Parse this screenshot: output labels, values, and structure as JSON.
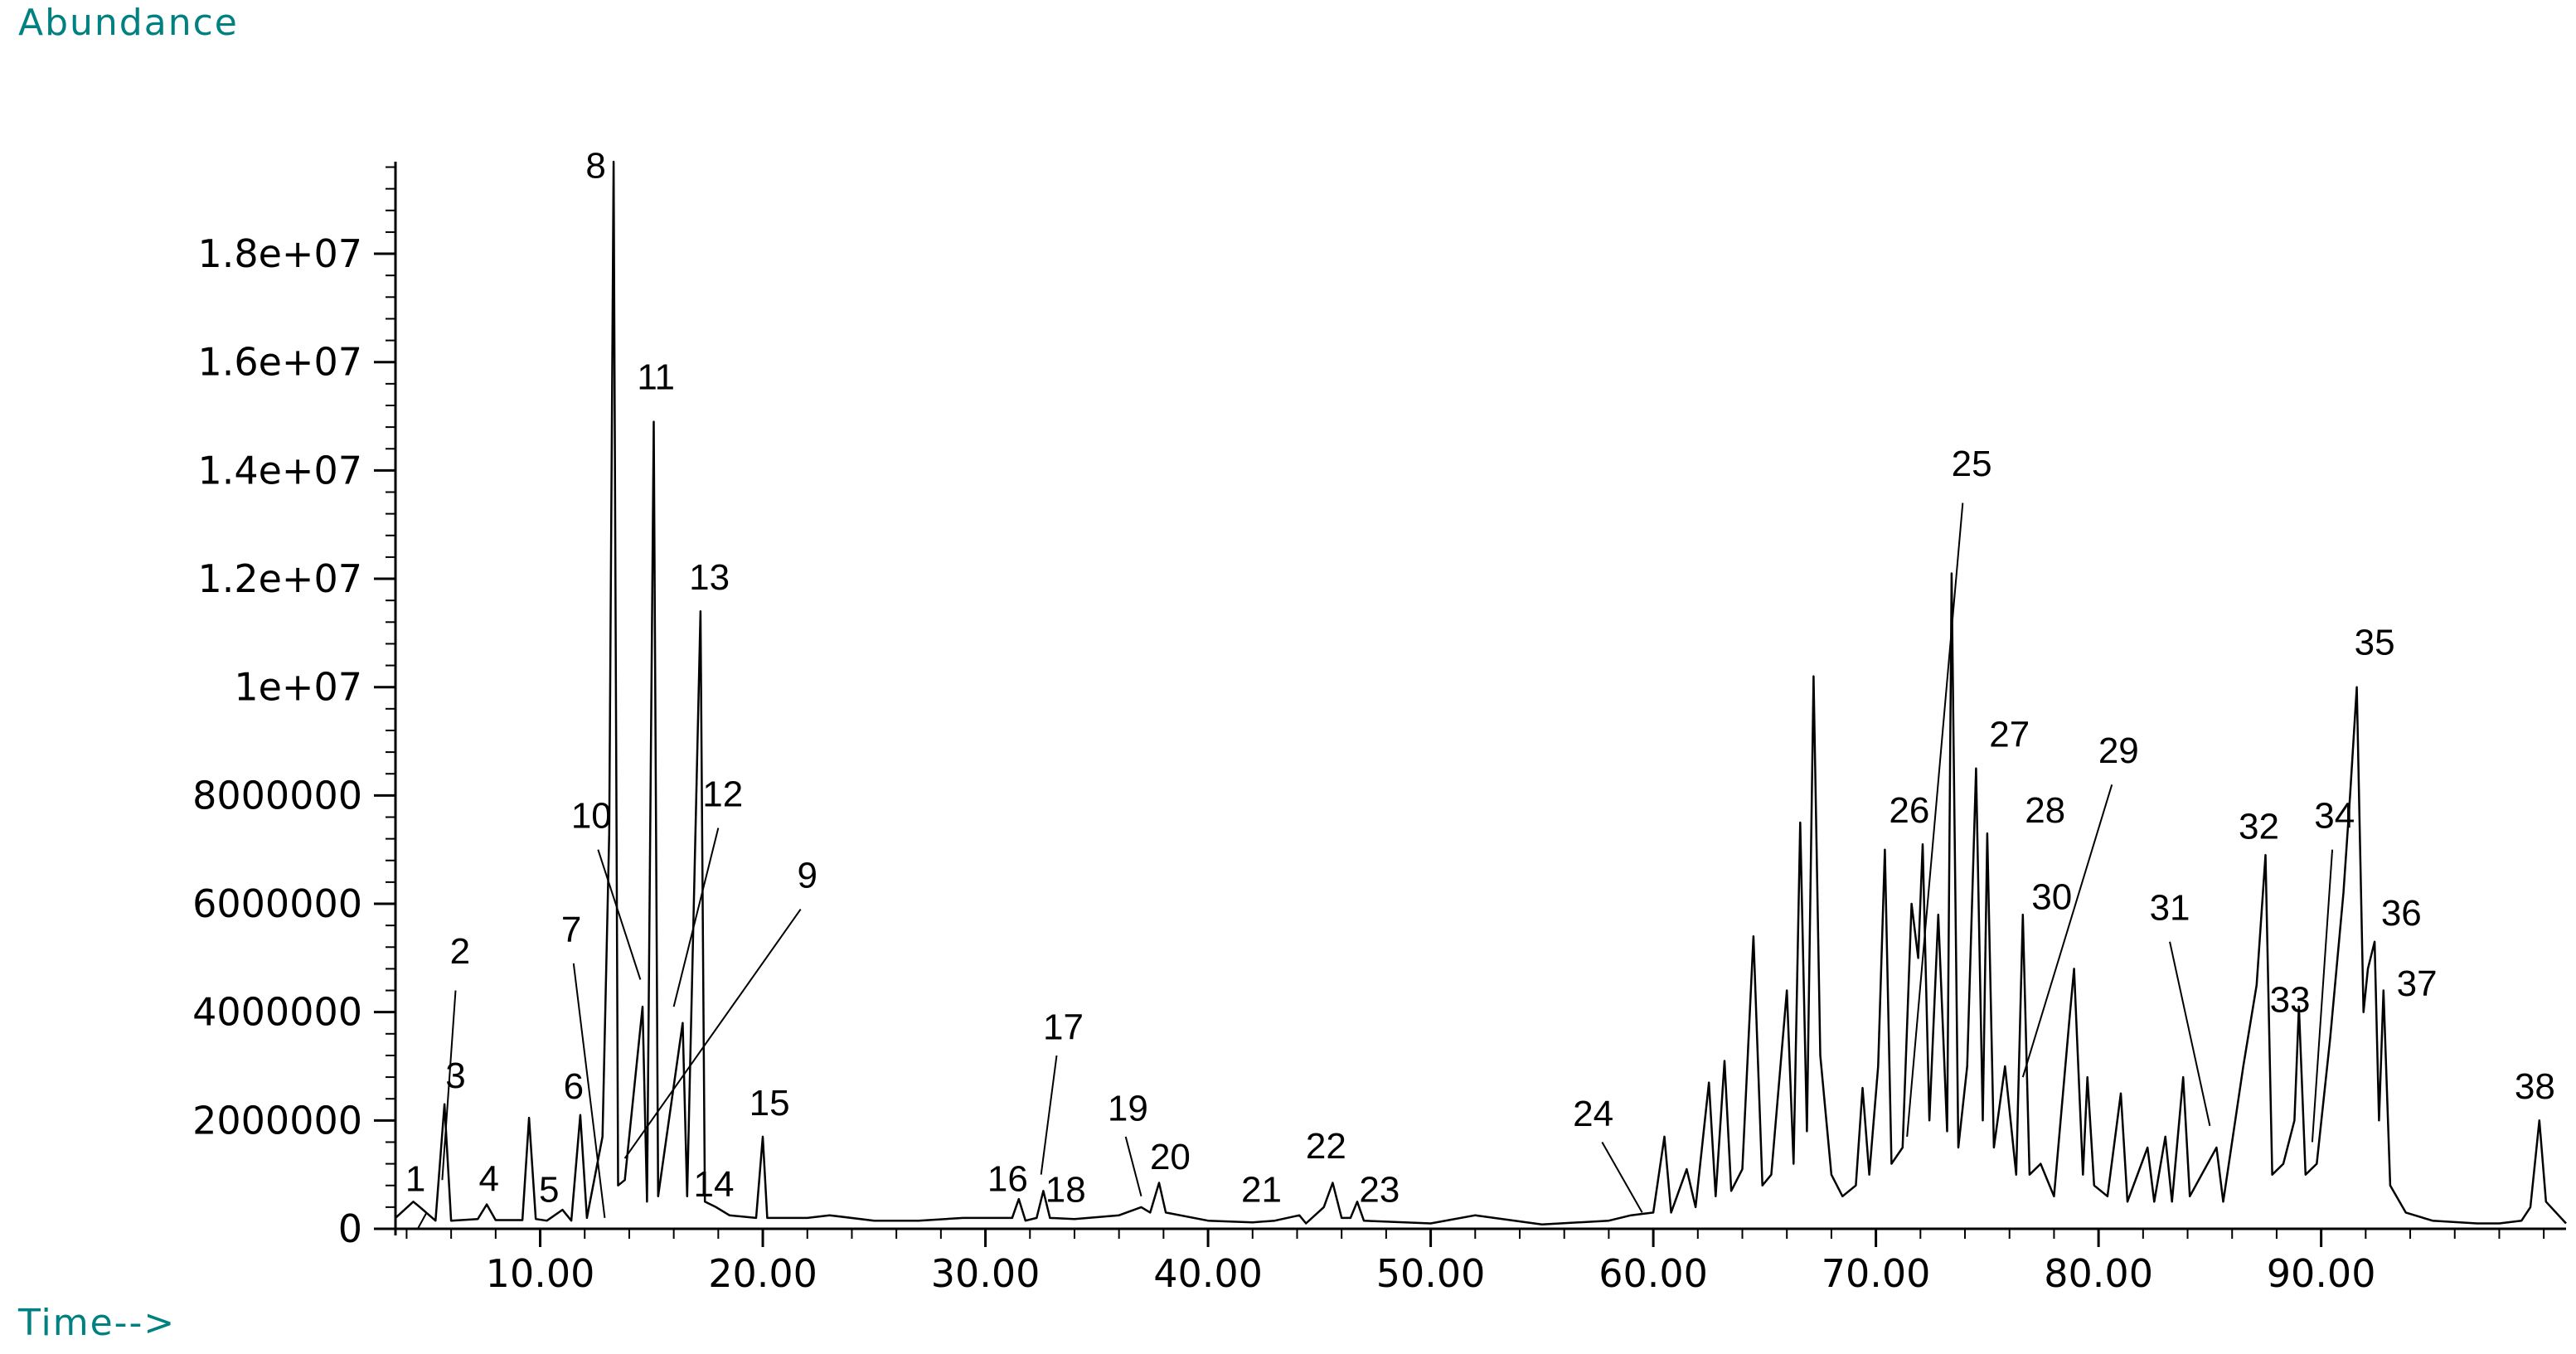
{
  "chart_data": {
    "type": "line",
    "ylabel": "Abundance",
    "xlabel": "Time-->",
    "xlim": [
      3.5,
      101
    ],
    "ylim": [
      0,
      19700000
    ],
    "x_ticks": [
      10,
      20,
      30,
      40,
      50,
      60,
      70,
      80,
      90
    ],
    "x_tick_labels": [
      "10.00",
      "20.00",
      "30.00",
      "40.00",
      "50.00",
      "60.00",
      "70.00",
      "80.00",
      "90.00"
    ],
    "y_ticks": [
      0,
      2000000,
      4000000,
      6000000,
      8000000,
      10000000,
      12000000,
      14000000,
      16000000,
      18000000
    ],
    "y_tick_labels": [
      "0",
      "2000000",
      "4000000",
      "6000000",
      "8000000",
      "1e+07",
      "1.2e+07",
      "1.4e+07",
      "1.6e+07",
      "1.8e+07"
    ],
    "line_color": "#000000",
    "series": [
      {
        "values": [
          [
            3.5,
            200000
          ],
          [
            4.3,
            500000
          ],
          [
            4.6,
            400000
          ],
          [
            5.3,
            150000
          ],
          [
            5.7,
            2300000
          ],
          [
            6.0,
            150000
          ],
          [
            7.2,
            180000
          ],
          [
            7.6,
            450000
          ],
          [
            8.0,
            160000
          ],
          [
            9.2,
            160000
          ],
          [
            9.5,
            2050000
          ],
          [
            9.8,
            180000
          ],
          [
            10.3,
            150000
          ],
          [
            11.0,
            350000
          ],
          [
            11.4,
            150000
          ],
          [
            11.8,
            2100000
          ],
          [
            12.1,
            200000
          ],
          [
            12.8,
            1700000
          ],
          [
            13.1,
            7300000
          ],
          [
            13.3,
            19700000
          ],
          [
            13.5,
            800000
          ],
          [
            13.8,
            900000
          ],
          [
            14.6,
            4100000
          ],
          [
            14.8,
            500000
          ],
          [
            15.1,
            14900000
          ],
          [
            15.3,
            600000
          ],
          [
            16.4,
            3800000
          ],
          [
            16.6,
            600000
          ],
          [
            17.2,
            11400000
          ],
          [
            17.4,
            500000
          ],
          [
            17.9,
            400000
          ],
          [
            18.5,
            250000
          ],
          [
            19.7,
            200000
          ],
          [
            20.0,
            1700000
          ],
          [
            20.2,
            200000
          ],
          [
            22.0,
            200000
          ],
          [
            23.0,
            250000
          ],
          [
            25.0,
            150000
          ],
          [
            27.0,
            150000
          ],
          [
            29.0,
            200000
          ],
          [
            31.2,
            200000
          ],
          [
            31.5,
            550000
          ],
          [
            31.8,
            150000
          ],
          [
            32.3,
            200000
          ],
          [
            32.6,
            700000
          ],
          [
            32.9,
            200000
          ],
          [
            34.0,
            180000
          ],
          [
            36.0,
            250000
          ],
          [
            37.0,
            400000
          ],
          [
            37.4,
            300000
          ],
          [
            37.8,
            850000
          ],
          [
            38.1,
            300000
          ],
          [
            40.0,
            150000
          ],
          [
            42.0,
            120000
          ],
          [
            43.0,
            150000
          ],
          [
            44.1,
            250000
          ],
          [
            44.4,
            100000
          ],
          [
            45.2,
            400000
          ],
          [
            45.6,
            850000
          ],
          [
            46.0,
            200000
          ],
          [
            46.4,
            200000
          ],
          [
            46.7,
            500000
          ],
          [
            47.0,
            150000
          ],
          [
            50.0,
            100000
          ],
          [
            52.0,
            250000
          ],
          [
            55.0,
            80000
          ],
          [
            58.0,
            150000
          ],
          [
            59.0,
            250000
          ],
          [
            60.0,
            300000
          ],
          [
            60.5,
            1700000
          ],
          [
            60.8,
            300000
          ],
          [
            61.5,
            1100000
          ],
          [
            61.9,
            400000
          ],
          [
            62.5,
            2700000
          ],
          [
            62.8,
            600000
          ],
          [
            63.2,
            3100000
          ],
          [
            63.5,
            700000
          ],
          [
            64.0,
            1100000
          ],
          [
            64.5,
            5400000
          ],
          [
            64.9,
            800000
          ],
          [
            65.3,
            1000000
          ],
          [
            66.0,
            4400000
          ],
          [
            66.3,
            1200000
          ],
          [
            66.6,
            7500000
          ],
          [
            66.9,
            1800000
          ],
          [
            67.2,
            10200000
          ],
          [
            67.5,
            3200000
          ],
          [
            68.0,
            1000000
          ],
          [
            68.5,
            600000
          ],
          [
            69.1,
            800000
          ],
          [
            69.4,
            2600000
          ],
          [
            69.7,
            1000000
          ],
          [
            70.1,
            3000000
          ],
          [
            70.4,
            7000000
          ],
          [
            70.7,
            1200000
          ],
          [
            71.2,
            1500000
          ],
          [
            71.6,
            6000000
          ],
          [
            71.9,
            5000000
          ],
          [
            72.1,
            7100000
          ],
          [
            72.4,
            2000000
          ],
          [
            72.8,
            5800000
          ],
          [
            73.2,
            1800000
          ],
          [
            73.4,
            12100000
          ],
          [
            73.7,
            1500000
          ],
          [
            74.1,
            3000000
          ],
          [
            74.5,
            8500000
          ],
          [
            74.8,
            2000000
          ],
          [
            75.0,
            7300000
          ],
          [
            75.3,
            1500000
          ],
          [
            75.8,
            3000000
          ],
          [
            76.3,
            1000000
          ],
          [
            76.6,
            5800000
          ],
          [
            76.9,
            1000000
          ],
          [
            77.4,
            1200000
          ],
          [
            78.0,
            600000
          ],
          [
            78.7,
            3900000
          ],
          [
            78.9,
            4800000
          ],
          [
            79.3,
            1000000
          ],
          [
            79.5,
            2800000
          ],
          [
            79.8,
            800000
          ],
          [
            80.4,
            600000
          ],
          [
            81.0,
            2500000
          ],
          [
            81.3,
            500000
          ],
          [
            82.2,
            1500000
          ],
          [
            82.5,
            500000
          ],
          [
            83.0,
            1700000
          ],
          [
            83.3,
            500000
          ],
          [
            83.8,
            2800000
          ],
          [
            84.1,
            600000
          ],
          [
            85.3,
            1500000
          ],
          [
            85.6,
            500000
          ],
          [
            86.5,
            3000000
          ],
          [
            87.1,
            4500000
          ],
          [
            87.5,
            6900000
          ],
          [
            87.8,
            1000000
          ],
          [
            88.3,
            1200000
          ],
          [
            88.8,
            2000000
          ],
          [
            89.0,
            4100000
          ],
          [
            89.3,
            1000000
          ],
          [
            89.8,
            1200000
          ],
          [
            90.4,
            3500000
          ],
          [
            91.0,
            6200000
          ],
          [
            91.3,
            8000000
          ],
          [
            91.6,
            10000000
          ],
          [
            91.9,
            4000000
          ],
          [
            92.1,
            4800000
          ],
          [
            92.4,
            5300000
          ],
          [
            92.6,
            2000000
          ],
          [
            92.8,
            4400000
          ],
          [
            93.1,
            800000
          ],
          [
            93.8,
            300000
          ],
          [
            95.0,
            150000
          ],
          [
            97.0,
            100000
          ],
          [
            98.0,
            100000
          ],
          [
            99.0,
            150000
          ],
          [
            99.4,
            400000
          ],
          [
            99.8,
            2000000
          ],
          [
            100.1,
            500000
          ],
          [
            101.0,
            100000
          ]
        ]
      }
    ],
    "peak_labels": [
      {
        "text": "1",
        "x": 4.4,
        "y": 700000,
        "dir": "up"
      },
      {
        "text": "2",
        "x": 6.4,
        "y": 4900000,
        "dir": "up"
      },
      {
        "text": "3",
        "x": 6.2,
        "y": 2600000,
        "dir": "up"
      },
      {
        "text": "4",
        "x": 7.7,
        "y": 700000,
        "dir": "up"
      },
      {
        "text": "5",
        "x": 10.4,
        "y": 500000,
        "dir": "up"
      },
      {
        "text": "6",
        "x": 11.5,
        "y": 2400000,
        "dir": "up"
      },
      {
        "text": "7",
        "x": 11.4,
        "y": 5300000,
        "dir": "up"
      },
      {
        "text": "8",
        "x": 12.5,
        "y": 19400000,
        "dir": "up"
      },
      {
        "text": "9",
        "x": 22.0,
        "y": 6300000,
        "dir": "up"
      },
      {
        "text": "10",
        "x": 12.3,
        "y": 7400000,
        "dir": "up"
      },
      {
        "text": "11",
        "x": 15.2,
        "y": 15500000,
        "dir": "up"
      },
      {
        "text": "12",
        "x": 18.2,
        "y": 7800000,
        "dir": "up"
      },
      {
        "text": "13",
        "x": 17.6,
        "y": 11800000,
        "dir": "up"
      },
      {
        "text": "14",
        "x": 17.8,
        "y": 600000,
        "dir": "up"
      },
      {
        "text": "15",
        "x": 20.3,
        "y": 2100000,
        "dir": "up"
      },
      {
        "text": "16",
        "x": 31.0,
        "y": 700000,
        "dir": "up"
      },
      {
        "text": "17",
        "x": 33.5,
        "y": 3500000,
        "dir": "up"
      },
      {
        "text": "18",
        "x": 33.6,
        "y": 500000,
        "dir": "up"
      },
      {
        "text": "19",
        "x": 36.4,
        "y": 2000000,
        "dir": "up"
      },
      {
        "text": "20",
        "x": 38.3,
        "y": 1100000,
        "dir": "up"
      },
      {
        "text": "21",
        "x": 42.4,
        "y": 500000,
        "dir": "up"
      },
      {
        "text": "22",
        "x": 45.3,
        "y": 1300000,
        "dir": "up"
      },
      {
        "text": "23",
        "x": 47.7,
        "y": 500000,
        "dir": "up"
      },
      {
        "text": "24",
        "x": 57.3,
        "y": 1900000,
        "dir": "up"
      },
      {
        "text": "25",
        "x": 74.3,
        "y": 13900000,
        "dir": "up"
      },
      {
        "text": "26",
        "x": 71.5,
        "y": 7500000,
        "dir": "up"
      },
      {
        "text": "27",
        "x": 76.0,
        "y": 8900000,
        "dir": "up"
      },
      {
        "text": "28",
        "x": 77.6,
        "y": 7500000,
        "dir": "up"
      },
      {
        "text": "29",
        "x": 80.9,
        "y": 8600000,
        "dir": "up"
      },
      {
        "text": "30",
        "x": 77.9,
        "y": 5900000,
        "dir": "up"
      },
      {
        "text": "31",
        "x": 83.2,
        "y": 5700000,
        "dir": "up"
      },
      {
        "text": "32",
        "x": 87.2,
        "y": 7200000,
        "dir": "up"
      },
      {
        "text": "33",
        "x": 88.6,
        "y": 4000000,
        "dir": "up"
      },
      {
        "text": "34",
        "x": 90.6,
        "y": 7400000,
        "dir": "up"
      },
      {
        "text": "35",
        "x": 92.4,
        "y": 10600000,
        "dir": "up"
      },
      {
        "text": "36",
        "x": 93.6,
        "y": 5600000,
        "dir": "up"
      },
      {
        "text": "37",
        "x": 94.3,
        "y": 4300000,
        "dir": "up"
      },
      {
        "text": "38",
        "x": 99.6,
        "y": 2400000,
        "dir": "up"
      }
    ],
    "leader_lines": [
      {
        "label": "1",
        "from": [
          4.5,
          0
        ],
        "to": [
          4.9,
          300000
        ]
      },
      {
        "label": "2",
        "from": [
          6.2,
          4400000
        ],
        "to": [
          5.6,
          900000
        ]
      },
      {
        "label": "7",
        "from": [
          11.5,
          4900000
        ],
        "to": [
          12.9,
          200000
        ]
      },
      {
        "label": "9",
        "from": [
          21.7,
          5900000
        ],
        "to": [
          13.8,
          1300000
        ]
      },
      {
        "label": "10",
        "from": [
          12.6,
          7000000
        ],
        "to": [
          14.5,
          4600000
        ]
      },
      {
        "label": "12",
        "from": [
          18.0,
          7400000
        ],
        "to": [
          16.0,
          4100000
        ]
      },
      {
        "label": "17",
        "from": [
          33.2,
          3200000
        ],
        "to": [
          32.5,
          1000000
        ]
      },
      {
        "label": "19",
        "from": [
          36.3,
          1700000
        ],
        "to": [
          37.0,
          600000
        ]
      },
      {
        "label": "24",
        "from": [
          57.7,
          1600000
        ],
        "to": [
          59.5,
          300000
        ]
      },
      {
        "label": "25",
        "from": [
          73.9,
          13400000
        ],
        "to": [
          71.4,
          1700000
        ]
      },
      {
        "label": "29",
        "from": [
          80.6,
          8200000
        ],
        "to": [
          76.6,
          2800000
        ]
      },
      {
        "label": "31",
        "from": [
          83.2,
          5300000
        ],
        "to": [
          85.0,
          1900000
        ]
      },
      {
        "label": "34",
        "from": [
          90.5,
          7000000
        ],
        "to": [
          89.6,
          1600000
        ]
      }
    ]
  }
}
